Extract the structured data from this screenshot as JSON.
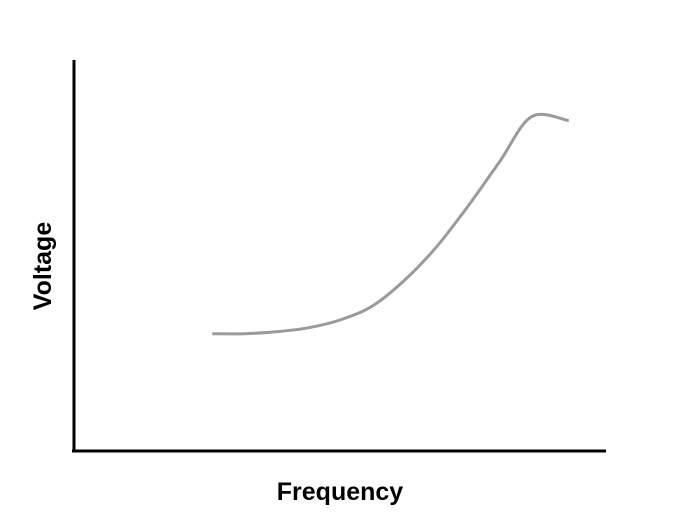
{
  "chart_data": {
    "type": "line",
    "title": "",
    "xlabel": "Frequency",
    "ylabel": "Voltage",
    "xlim": [
      0,
      10
    ],
    "ylim": [
      0,
      10
    ],
    "grid": false,
    "ticks": false,
    "series": [
      {
        "color": "#9a9a9a",
        "x": [
          2.6,
          3.2,
          3.8,
          4.4,
          5.0,
          5.6,
          6.2,
          6.8,
          7.4,
          8.0,
          8.6,
          9.3
        ],
        "y": [
          3.0,
          3.0,
          3.05,
          3.15,
          3.35,
          3.7,
          4.35,
          5.2,
          6.25,
          7.4,
          8.55,
          8.45
        ]
      }
    ]
  }
}
